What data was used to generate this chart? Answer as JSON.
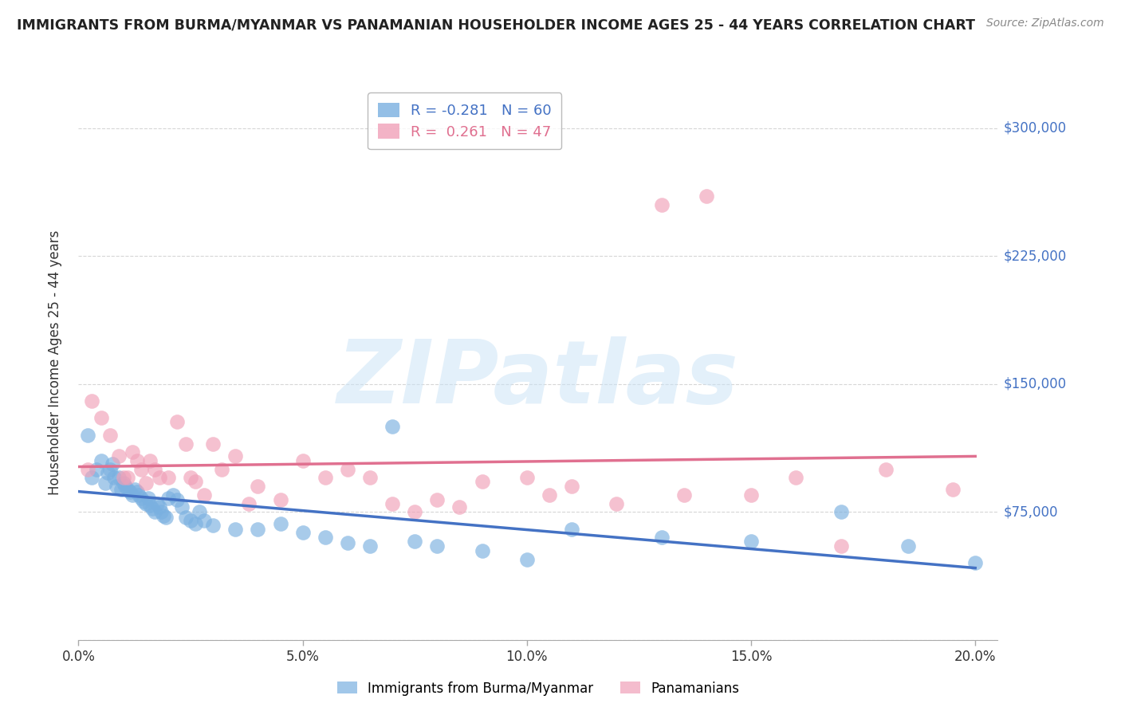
{
  "title": "IMMIGRANTS FROM BURMA/MYANMAR VS PANAMANIAN HOUSEHOLDER INCOME AGES 25 - 44 YEARS CORRELATION CHART",
  "source": "Source: ZipAtlas.com",
  "ylabel": "Householder Income Ages 25 - 44 years",
  "yticks": [
    0,
    75000,
    150000,
    225000,
    300000
  ],
  "ytick_labels": [
    "",
    "$75,000",
    "$150,000",
    "$225,000",
    "$300,000"
  ],
  "ylim": [
    0,
    325000
  ],
  "xlim": [
    0.0,
    20.5
  ],
  "xticks": [
    0,
    5,
    10,
    15,
    20
  ],
  "xtick_labels": [
    "0.0%",
    "5.0%",
    "10.0%",
    "15.0%",
    "20.0%"
  ],
  "series_blue": {
    "name": "Immigrants from Burma/Myanmar",
    "color": "#7ab0e0",
    "x": [
      0.2,
      0.3,
      0.4,
      0.5,
      0.6,
      0.65,
      0.7,
      0.75,
      0.8,
      0.85,
      0.9,
      0.95,
      1.0,
      1.05,
      1.1,
      1.15,
      1.2,
      1.25,
      1.3,
      1.35,
      1.4,
      1.45,
      1.5,
      1.55,
      1.6,
      1.65,
      1.7,
      1.75,
      1.8,
      1.85,
      1.9,
      1.95,
      2.0,
      2.1,
      2.2,
      2.3,
      2.4,
      2.5,
      2.6,
      2.7,
      2.8,
      3.0,
      3.5,
      4.0,
      4.5,
      5.0,
      5.5,
      6.0,
      6.5,
      7.0,
      7.5,
      8.0,
      9.0,
      10.0,
      11.0,
      13.0,
      15.0,
      17.0,
      18.5,
      20.0
    ],
    "y": [
      120000,
      95000,
      100000,
      105000,
      92000,
      98000,
      100000,
      103000,
      95000,
      90000,
      95000,
      88000,
      92000,
      90000,
      88000,
      87000,
      85000,
      88000,
      87000,
      85000,
      83000,
      81000,
      80000,
      83000,
      79000,
      77000,
      75000,
      80000,
      78000,
      75000,
      73000,
      72000,
      83000,
      85000,
      82000,
      78000,
      72000,
      70000,
      68000,
      75000,
      70000,
      67000,
      65000,
      65000,
      68000,
      63000,
      60000,
      57000,
      55000,
      125000,
      58000,
      55000,
      52000,
      47000,
      65000,
      60000,
      58000,
      75000,
      55000,
      45000
    ]
  },
  "series_pink": {
    "name": "Panamanians",
    "color": "#f0a0b8",
    "x": [
      0.2,
      0.3,
      0.5,
      0.7,
      0.9,
      1.0,
      1.1,
      1.2,
      1.3,
      1.4,
      1.5,
      1.6,
      1.7,
      1.8,
      2.0,
      2.2,
      2.4,
      2.5,
      2.6,
      2.8,
      3.0,
      3.2,
      3.5,
      3.8,
      4.0,
      4.5,
      5.0,
      5.5,
      6.0,
      6.5,
      7.0,
      7.5,
      8.0,
      8.5,
      9.0,
      10.0,
      10.5,
      11.0,
      12.0,
      13.0,
      13.5,
      14.0,
      15.0,
      16.0,
      17.0,
      18.0,
      19.5
    ],
    "y": [
      100000,
      140000,
      130000,
      120000,
      108000,
      95000,
      95000,
      110000,
      105000,
      100000,
      92000,
      105000,
      100000,
      95000,
      95000,
      128000,
      115000,
      95000,
      93000,
      85000,
      115000,
      100000,
      108000,
      80000,
      90000,
      82000,
      105000,
      95000,
      100000,
      95000,
      80000,
      75000,
      82000,
      78000,
      93000,
      95000,
      85000,
      90000,
      80000,
      255000,
      85000,
      260000,
      85000,
      95000,
      55000,
      100000,
      88000
    ]
  },
  "trend_blue_color": "#4472c4",
  "trend_pink_color": "#e07090",
  "watermark": "ZIPatlas",
  "background_color": "#ffffff",
  "grid_color": "#cccccc",
  "title_color": "#222222",
  "ytick_color": "#4472c4",
  "source_color": "#888888",
  "legend_label_blue": "R = -0.281   N = 60",
  "legend_label_pink": "R =  0.261   N = 47"
}
